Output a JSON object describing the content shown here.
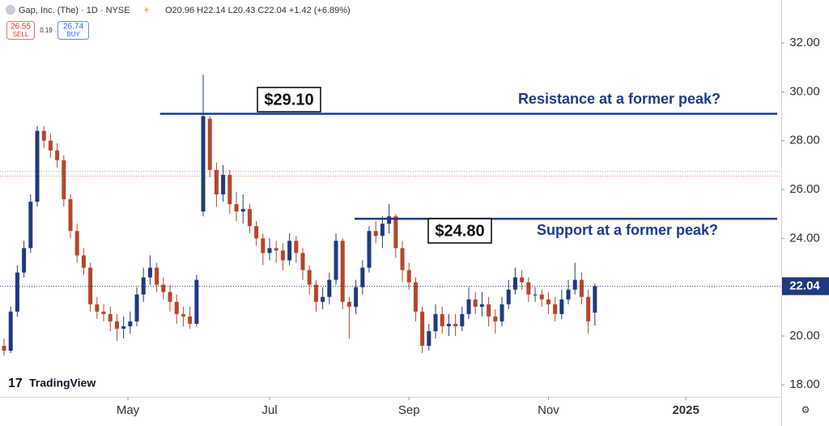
{
  "header": {
    "symbol": "Gap, Inc. (The) · 1D · NYSE",
    "ohlc": "O20.96 H22.14 L20.43 C22.04 +1.42 (+6.89%)",
    "sell": 26.55,
    "sell_label": "SELL",
    "spread": 0.19,
    "buy": 26.74,
    "buy_label": "BUY",
    "brand": "TradingView"
  },
  "chart_data": {
    "type": "candlestick",
    "up_color": "#1f3a7d",
    "down_color": "#b5462c",
    "open": [
      19.6,
      19.4,
      21.0,
      22.6,
      23.6,
      25.5,
      28.4,
      28.0,
      27.6,
      27.2,
      25.6,
      24.3,
      23.3,
      22.8,
      21.3,
      21.0,
      20.9,
      20.6,
      20.3,
      20.4,
      20.6,
      21.7,
      22.4,
      22.8,
      22.1,
      21.8,
      21.4,
      20.9,
      20.8,
      20.5,
      25.1,
      28.9,
      26.8,
      25.8,
      26.6,
      25.4,
      25.1,
      25.2,
      24.5,
      24.0,
      23.4,
      23.6,
      23.5,
      23.1,
      23.9,
      23.4,
      22.7,
      22.1,
      21.4,
      21.6,
      22.3,
      23.9,
      21.4,
      21.2,
      22.0,
      22.8,
      24.3,
      24.1,
      24.6,
      24.9,
      23.6,
      22.7,
      22.2,
      21.0,
      19.6,
      20.2,
      20.9,
      20.4,
      20.5,
      20.4,
      20.9,
      21.5,
      21.2,
      21.3,
      20.8,
      20.6,
      21.3,
      21.9,
      22.4,
      22.2,
      21.7,
      21.7,
      21.5,
      21.3,
      20.9,
      21.5,
      21.9,
      22.3,
      21.6,
      20.96
    ],
    "high": [
      19.9,
      21.2,
      22.9,
      23.9,
      25.8,
      28.6,
      28.6,
      28.3,
      27.9,
      27.4,
      25.8,
      24.6,
      23.6,
      23.0,
      21.6,
      21.3,
      21.2,
      20.9,
      20.8,
      21.0,
      22.0,
      22.8,
      23.3,
      23.0,
      22.4,
      22.1,
      21.7,
      21.2,
      21.2,
      22.5,
      30.7,
      29.0,
      27.1,
      27.0,
      26.8,
      25.9,
      25.8,
      25.4,
      24.7,
      24.2,
      24.0,
      23.9,
      23.8,
      24.2,
      24.1,
      23.6,
      22.9,
      22.3,
      22.0,
      22.6,
      24.2,
      24.0,
      21.6,
      22.3,
      23.1,
      24.5,
      24.7,
      24.9,
      25.4,
      25.0,
      23.9,
      23.0,
      22.4,
      21.2,
      20.5,
      21.3,
      21.2,
      20.9,
      20.9,
      21.2,
      22.0,
      21.8,
      21.8,
      21.6,
      21.1,
      21.6,
      22.3,
      22.8,
      22.7,
      22.4,
      22.0,
      21.9,
      21.8,
      21.6,
      21.9,
      22.3,
      23.0,
      22.6,
      21.9,
      22.14
    ],
    "low": [
      19.2,
      19.3,
      20.8,
      22.4,
      23.4,
      25.3,
      27.7,
      27.3,
      26.9,
      25.3,
      24.0,
      23.0,
      22.5,
      21.0,
      20.7,
      20.6,
      20.2,
      19.8,
      19.9,
      20.1,
      20.4,
      21.4,
      22.1,
      21.8,
      21.5,
      21.0,
      20.5,
      20.4,
      20.3,
      20.4,
      24.9,
      26.5,
      25.3,
      25.5,
      25.0,
      24.7,
      24.6,
      24.2,
      23.7,
      22.9,
      23.1,
      23.0,
      22.7,
      22.9,
      23.0,
      22.3,
      21.7,
      21.0,
      21.1,
      21.3,
      22.1,
      21.1,
      19.9,
      20.9,
      21.7,
      22.6,
      23.8,
      23.6,
      24.2,
      23.2,
      22.2,
      21.9,
      20.6,
      19.3,
      19.4,
      19.9,
      20.1,
      20.0,
      20.0,
      20.2,
      20.7,
      20.9,
      20.8,
      20.4,
      20.1,
      20.4,
      21.1,
      21.7,
      21.9,
      21.4,
      21.4,
      21.2,
      20.9,
      20.6,
      20.7,
      21.3,
      21.7,
      21.3,
      20.1,
      20.43
    ],
    "close": [
      19.4,
      21.0,
      22.6,
      23.6,
      25.5,
      28.4,
      28.0,
      27.6,
      27.2,
      25.6,
      24.3,
      23.3,
      22.8,
      21.3,
      21.0,
      20.9,
      20.6,
      20.3,
      20.4,
      20.6,
      21.7,
      22.4,
      22.8,
      22.1,
      21.8,
      21.4,
      20.9,
      20.8,
      20.5,
      22.3,
      29.0,
      26.8,
      25.8,
      26.6,
      25.4,
      25.1,
      25.2,
      24.5,
      24.0,
      23.4,
      23.6,
      23.5,
      23.1,
      23.9,
      23.4,
      22.7,
      22.1,
      21.4,
      21.6,
      22.3,
      23.9,
      21.4,
      21.2,
      22.0,
      22.8,
      24.3,
      24.1,
      24.6,
      24.9,
      23.6,
      22.7,
      22.2,
      21.0,
      19.6,
      20.2,
      20.9,
      20.4,
      20.5,
      20.4,
      20.9,
      21.5,
      21.2,
      21.3,
      20.8,
      20.6,
      21.3,
      21.9,
      22.4,
      22.2,
      21.7,
      21.7,
      21.5,
      21.3,
      20.9,
      21.5,
      21.9,
      22.3,
      21.6,
      20.6,
      22.04
    ],
    "xlim": [
      -0.61,
      117.07
    ],
    "xticks": [
      {
        "value": 18.66,
        "label": "May"
      },
      {
        "value": 40,
        "label": "Jul"
      },
      {
        "value": 61,
        "label": "Sep"
      },
      {
        "value": 82,
        "label": "Nov"
      },
      {
        "value": 102.7,
        "label": "2025"
      }
    ],
    "ylim": [
      17.51,
      33.76
    ],
    "yticks": [
      {
        "value": 18,
        "label": "18.00"
      },
      {
        "value": 20,
        "label": "20.00"
      },
      {
        "value": 22,
        "label": "22.00"
      },
      {
        "value": 24,
        "label": "24.00"
      },
      {
        "value": 26,
        "label": "26.00"
      },
      {
        "value": 28,
        "label": "28.00"
      },
      {
        "value": 30,
        "label": "30.00"
      },
      {
        "value": 32,
        "label": "32.00"
      }
    ],
    "annotations": [
      {
        "level": {
          "value": 29.1,
          "label": "$29.10"
        },
        "text": "Resistance at a former peak?",
        "x_start": 23.5
      },
      {
        "level": {
          "value": 24.8,
          "label": "$24.80"
        },
        "text": "Support at a former peak?",
        "x_start": 52.8
      }
    ]
  }
}
